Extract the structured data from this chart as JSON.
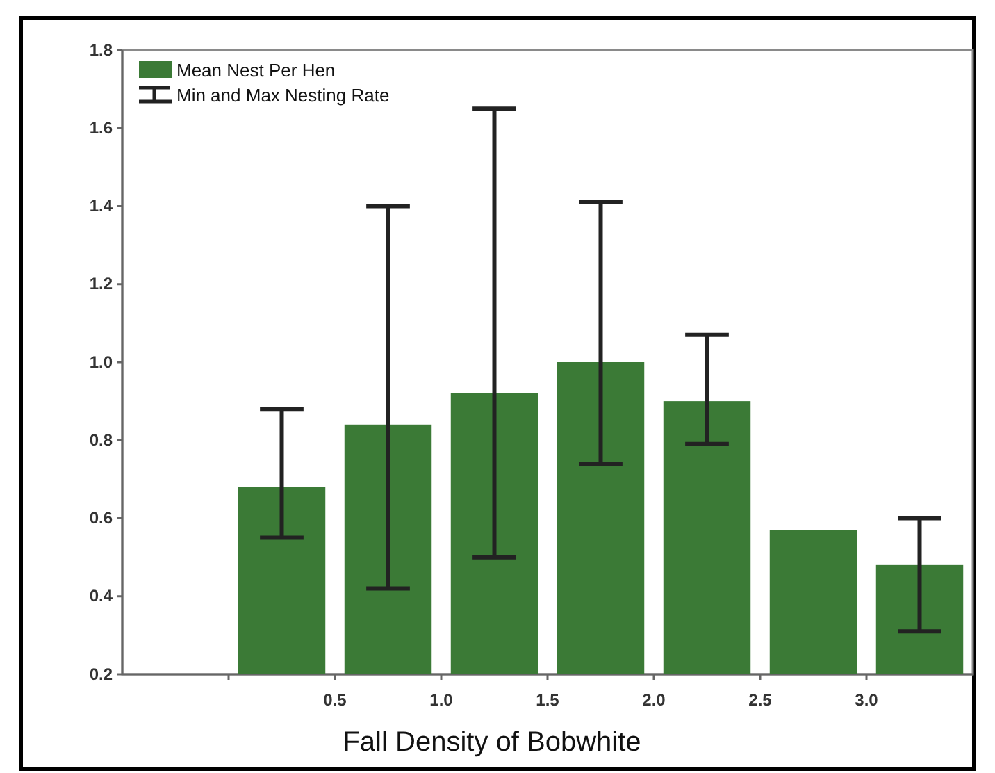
{
  "chart_data": {
    "type": "bar",
    "xlabel": "Fall Density of Bobwhite",
    "x": [
      0.25,
      0.75,
      1.25,
      1.75,
      2.25,
      2.75,
      3.25
    ],
    "series": [
      {
        "name": "Mean Nest Per Hen",
        "color": "#3b7a36",
        "values": [
          0.68,
          0.84,
          0.92,
          1.0,
          0.9,
          0.57,
          0.48
        ],
        "errors": [
          [
            0.55,
            0.88
          ],
          [
            0.42,
            1.4
          ],
          [
            0.5,
            1.65
          ],
          [
            0.74,
            1.41
          ],
          [
            0.79,
            1.07
          ],
          null,
          [
            0.31,
            0.6
          ]
        ]
      }
    ],
    "annotations": [
      "Min and Max Nesting Rate"
    ],
    "xlim": [
      -0.5,
      3.5
    ],
    "xticks": [
      {
        "value": 0,
        "label": null
      },
      {
        "value": 0.5,
        "label": "0.5"
      },
      {
        "value": 1,
        "label": "1.0"
      },
      {
        "value": 1.5,
        "label": "1.5"
      },
      {
        "value": 2,
        "label": "2.0"
      },
      {
        "value": 2.5,
        "label": "2.5"
      },
      {
        "value": 3,
        "label": "3.0"
      }
    ],
    "ylim": [
      0.2,
      1.8
    ],
    "yticks": [
      {
        "value": 0.2,
        "label": "0.2"
      },
      {
        "value": 0.4,
        "label": "0.4"
      },
      {
        "value": 0.6,
        "label": "0.6"
      },
      {
        "value": 0.8,
        "label": "0.8"
      },
      {
        "value": 1,
        "label": "1.0"
      },
      {
        "value": 1.2,
        "label": "1.2"
      },
      {
        "value": 1.4,
        "label": "1.4"
      },
      {
        "value": 1.6,
        "label": "1.6"
      },
      {
        "value": 1.8,
        "label": "1.8"
      }
    ],
    "grid": false,
    "legend": "top left"
  }
}
